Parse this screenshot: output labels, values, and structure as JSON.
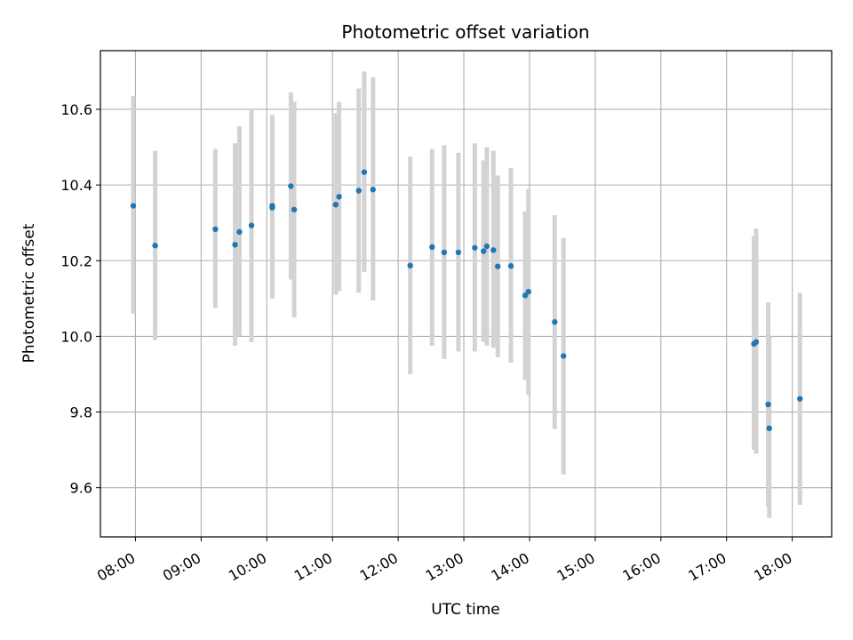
{
  "chart_data": {
    "type": "scatter",
    "title": "Photometric offset variation",
    "xlabel": "UTC time",
    "ylabel": "Photometric offset",
    "x_unit": "hours (UTC)",
    "xlim": [
      "07:28",
      "18:36"
    ],
    "ylim": [
      9.47,
      10.755
    ],
    "xticks": [
      "08:00",
      "09:00",
      "10:00",
      "11:00",
      "12:00",
      "13:00",
      "14:00",
      "15:00",
      "16:00",
      "17:00",
      "18:00"
    ],
    "yticks": [
      "9.6",
      "9.8",
      "10.0",
      "10.2",
      "10.4",
      "10.6"
    ],
    "grid": true,
    "legend": "none",
    "colors": {
      "points": "#1f77b4",
      "errorbars": "#d3d3d3",
      "grid": "#b0b0b0"
    },
    "series": [
      {
        "points": [
          {
            "x": "07:58",
            "y": 10.345,
            "lo": 10.06,
            "hi": 10.635
          },
          {
            "x": "08:18",
            "y": 10.24,
            "lo": 9.99,
            "hi": 10.49
          },
          {
            "x": "09:13",
            "y": 10.283,
            "lo": 10.075,
            "hi": 10.495
          },
          {
            "x": "09:31",
            "y": 10.242,
            "lo": 9.975,
            "hi": 10.51
          },
          {
            "x": "09:35",
            "y": 10.276,
            "lo": 10.0,
            "hi": 10.555
          },
          {
            "x": "09:46",
            "y": 10.293,
            "lo": 9.985,
            "hi": 10.6
          },
          {
            "x": "10:05",
            "y": 10.345,
            "lo": 10.1,
            "hi": 10.585
          },
          {
            "x": "10:05",
            "y": 10.34,
            "lo": 10.1,
            "hi": 10.585
          },
          {
            "x": "10:22",
            "y": 10.397,
            "lo": 10.15,
            "hi": 10.645
          },
          {
            "x": "10:25",
            "y": 10.335,
            "lo": 10.05,
            "hi": 10.62
          },
          {
            "x": "11:03",
            "y": 10.348,
            "lo": 10.11,
            "hi": 10.59
          },
          {
            "x": "11:06",
            "y": 10.369,
            "lo": 10.12,
            "hi": 10.62
          },
          {
            "x": "11:24",
            "y": 10.385,
            "lo": 10.115,
            "hi": 10.655
          },
          {
            "x": "11:29",
            "y": 10.434,
            "lo": 10.17,
            "hi": 10.7
          },
          {
            "x": "11:37",
            "y": 10.388,
            "lo": 10.095,
            "hi": 10.685
          },
          {
            "x": "12:11",
            "y": 10.187,
            "lo": 9.9,
            "hi": 10.475
          },
          {
            "x": "12:31",
            "y": 10.236,
            "lo": 9.975,
            "hi": 10.495
          },
          {
            "x": "12:42",
            "y": 10.222,
            "lo": 9.94,
            "hi": 10.505
          },
          {
            "x": "12:55",
            "y": 10.222,
            "lo": 9.96,
            "hi": 10.485
          },
          {
            "x": "13:10",
            "y": 10.234,
            "lo": 9.96,
            "hi": 10.51
          },
          {
            "x": "13:18",
            "y": 10.225,
            "lo": 9.985,
            "hi": 10.465
          },
          {
            "x": "13:21",
            "y": 10.238,
            "lo": 9.975,
            "hi": 10.5
          },
          {
            "x": "13:27",
            "y": 10.228,
            "lo": 9.97,
            "hi": 10.49
          },
          {
            "x": "13:31",
            "y": 10.185,
            "lo": 9.945,
            "hi": 10.425
          },
          {
            "x": "13:43",
            "y": 10.186,
            "lo": 9.93,
            "hi": 10.445
          },
          {
            "x": "13:56",
            "y": 10.108,
            "lo": 9.885,
            "hi": 10.33
          },
          {
            "x": "13:59",
            "y": 10.118,
            "lo": 9.845,
            "hi": 10.39
          },
          {
            "x": "14:23",
            "y": 10.038,
            "lo": 9.755,
            "hi": 10.32
          },
          {
            "x": "14:31",
            "y": 9.948,
            "lo": 9.635,
            "hi": 10.26
          },
          {
            "x": "17:25",
            "y": 9.98,
            "lo": 9.7,
            "hi": 10.265
          },
          {
            "x": "17:27",
            "y": 9.985,
            "lo": 9.69,
            "hi": 10.285
          },
          {
            "x": "17:38",
            "y": 9.82,
            "lo": 9.55,
            "hi": 10.09
          },
          {
            "x": "17:39",
            "y": 9.757,
            "lo": 9.52,
            "hi": 10.0
          },
          {
            "x": "18:07",
            "y": 9.835,
            "lo": 9.555,
            "hi": 10.115
          }
        ]
      }
    ]
  }
}
